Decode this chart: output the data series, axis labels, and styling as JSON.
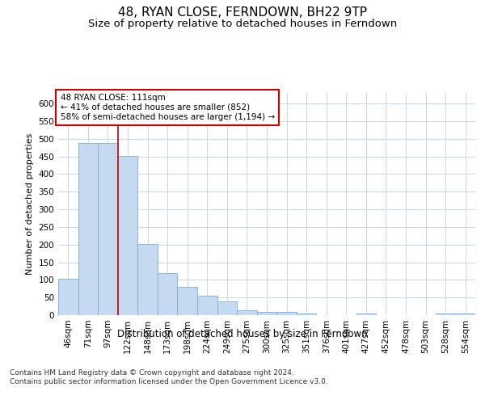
{
  "title1": "48, RYAN CLOSE, FERNDOWN, BH22 9TP",
  "title2": "Size of property relative to detached houses in Ferndown",
  "xlabel": "Distribution of detached houses by size in Ferndown",
  "ylabel": "Number of detached properties",
  "categories": [
    "46sqm",
    "71sqm",
    "97sqm",
    "122sqm",
    "148sqm",
    "173sqm",
    "198sqm",
    "224sqm",
    "249sqm",
    "275sqm",
    "300sqm",
    "325sqm",
    "351sqm",
    "376sqm",
    "401sqm",
    "427sqm",
    "452sqm",
    "478sqm",
    "503sqm",
    "528sqm",
    "554sqm"
  ],
  "values": [
    104,
    487,
    487,
    452,
    201,
    119,
    81,
    56,
    39,
    14,
    9,
    10,
    4,
    0,
    0,
    5,
    0,
    0,
    0,
    5,
    5
  ],
  "bar_color": "#c5d9f0",
  "bar_edge_color": "#7bafd4",
  "vline_x_index": 2.5,
  "vline_color": "#cc0000",
  "annotation_text": "48 RYAN CLOSE: 111sqm\n← 41% of detached houses are smaller (852)\n58% of semi-detached houses are larger (1,194) →",
  "annotation_box_color": "#ffffff",
  "annotation_box_edge_color": "#cc0000",
  "ylim": [
    0,
    630
  ],
  "yticks": [
    0,
    50,
    100,
    150,
    200,
    250,
    300,
    350,
    400,
    450,
    500,
    550,
    600
  ],
  "footer": "Contains HM Land Registry data © Crown copyright and database right 2024.\nContains public sector information licensed under the Open Government Licence v3.0.",
  "bg_color": "#ffffff",
  "grid_color": "#c8d4e8",
  "title1_fontsize": 11,
  "title2_fontsize": 9.5,
  "xlabel_fontsize": 8.5,
  "ylabel_fontsize": 8,
  "tick_fontsize": 7.5,
  "annotation_fontsize": 7.5,
  "footer_fontsize": 6.5
}
